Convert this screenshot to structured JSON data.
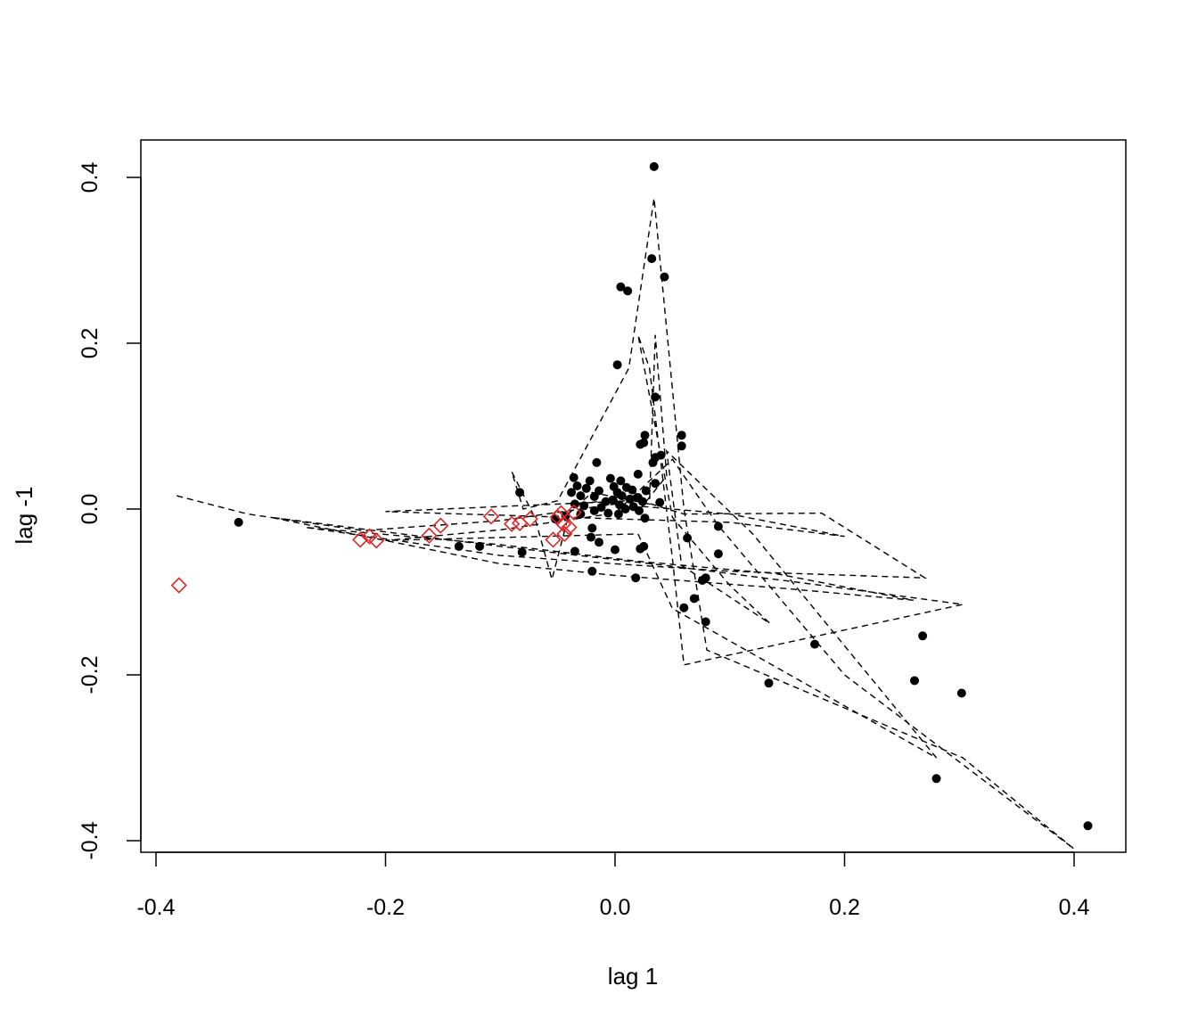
{
  "chart_data": {
    "type": "scatter",
    "title": "",
    "xlabel": "lag 1",
    "ylabel": "lag -1",
    "xlim": [
      -0.4,
      0.43
    ],
    "ylim": [
      -0.41,
      0.445
    ],
    "x_ticks": [
      -0.4,
      -0.2,
      0.0,
      0.2,
      0.4
    ],
    "x_tick_labels": [
      "-0.4",
      "-0.2",
      "0.0",
      "0.2",
      "0.4"
    ],
    "y_ticks": [
      -0.4,
      -0.2,
      0.0,
      0.2,
      0.4
    ],
    "y_tick_labels": [
      "-0.4",
      "-0.2",
      "0.0",
      "0.2",
      "0.4"
    ],
    "grid": false,
    "legend": "none",
    "colors": {
      "dots": "#000000",
      "diamonds": "#DF2727",
      "lines": "#000000"
    },
    "series": [
      {
        "marker": "filled-circle",
        "points": [
          [
            0.034,
            0.413
          ],
          [
            0.032,
            0.302
          ],
          [
            0.043,
            0.28
          ],
          [
            0.005,
            0.268
          ],
          [
            0.011,
            0.263
          ],
          [
            0.002,
            0.174
          ],
          [
            0.035,
            0.135
          ],
          [
            0.026,
            0.089
          ],
          [
            0.058,
            0.089
          ],
          [
            0.025,
            0.08
          ],
          [
            0.022,
            0.078
          ],
          [
            0.058,
            0.076
          ],
          [
            0.04,
            0.065
          ],
          [
            0.035,
            0.062
          ],
          [
            0.033,
            0.056
          ],
          [
            -0.016,
            0.056
          ],
          [
            0.02,
            0.042
          ],
          [
            -0.036,
            0.038
          ],
          [
            -0.004,
            0.037
          ],
          [
            0.005,
            0.034
          ],
          [
            -0.022,
            0.034
          ],
          [
            0.035,
            0.031
          ],
          [
            -0.033,
            0.028
          ],
          [
            -0.001,
            0.027
          ],
          [
            0.01,
            0.026
          ],
          [
            -0.025,
            0.025
          ],
          [
            0.015,
            0.023
          ],
          [
            0.027,
            0.022
          ],
          [
            0.002,
            0.02
          ],
          [
            -0.038,
            0.02
          ],
          [
            -0.014,
            0.022
          ],
          [
            -0.083,
            0.02
          ],
          [
            -0.03,
            0.016
          ],
          [
            0.006,
            0.016
          ],
          [
            -0.018,
            0.015
          ],
          [
            0.02,
            0.014
          ],
          [
            0.013,
            0.012
          ],
          [
            -0.002,
            0.011
          ],
          [
            -0.008,
            0.009
          ],
          [
            0.024,
            0.009
          ],
          [
            0.039,
            0.008
          ],
          [
            -0.035,
            0.006
          ],
          [
            0.004,
            0.005
          ],
          [
            -0.027,
            0.004
          ],
          [
            0.016,
            0.003
          ],
          [
            -0.012,
            0.002
          ],
          [
            0.009,
            0.0
          ],
          [
            0.021,
            -0.002
          ],
          [
            -0.018,
            -0.002
          ],
          [
            -0.006,
            -0.005
          ],
          [
            -0.03,
            -0.006
          ],
          [
            0.003,
            -0.006
          ],
          [
            -0.043,
            -0.008
          ],
          [
            0.026,
            -0.011
          ],
          [
            -0.052,
            -0.012
          ],
          [
            -0.328,
            -0.016
          ],
          [
            0.09,
            -0.021
          ],
          [
            -0.02,
            -0.023
          ],
          [
            -0.021,
            -0.034
          ],
          [
            0.063,
            -0.035
          ],
          [
            -0.014,
            -0.04
          ],
          [
            -0.136,
            -0.045
          ],
          [
            -0.118,
            -0.045
          ],
          [
            0.025,
            -0.045
          ],
          [
            0.022,
            -0.048
          ],
          [
            0.0,
            -0.049
          ],
          [
            -0.035,
            -0.051
          ],
          [
            -0.081,
            -0.052
          ],
          [
            0.09,
            -0.054
          ],
          [
            -0.02,
            -0.075
          ],
          [
            0.018,
            -0.083
          ],
          [
            0.079,
            -0.083
          ],
          [
            0.076,
            -0.086
          ],
          [
            0.069,
            -0.108
          ],
          [
            0.06,
            -0.119
          ],
          [
            0.079,
            -0.136
          ],
          [
            0.174,
            -0.163
          ],
          [
            0.268,
            -0.153
          ],
          [
            0.261,
            -0.207
          ],
          [
            0.134,
            -0.21
          ],
          [
            0.302,
            -0.222
          ],
          [
            0.28,
            -0.325
          ],
          [
            0.412,
            -0.382
          ]
        ]
      },
      {
        "marker": "open-diamond",
        "points": [
          [
            -0.38,
            -0.092
          ],
          [
            -0.222,
            -0.037
          ],
          [
            -0.214,
            -0.033
          ],
          [
            -0.208,
            -0.038
          ],
          [
            -0.162,
            -0.032
          ],
          [
            -0.152,
            -0.02
          ],
          [
            -0.108,
            -0.009
          ],
          [
            -0.09,
            -0.018
          ],
          [
            -0.083,
            -0.017
          ],
          [
            -0.074,
            -0.012
          ],
          [
            -0.054,
            -0.037
          ],
          [
            -0.05,
            -0.01
          ],
          [
            -0.047,
            -0.005
          ],
          [
            -0.044,
            -0.03
          ],
          [
            -0.04,
            -0.022
          ],
          [
            -0.036,
            -0.004
          ],
          [
            -0.045,
            -0.018
          ]
        ]
      },
      {
        "line": "dashed",
        "points": [
          [
            -0.382,
            0.016
          ],
          [
            -0.32,
            -0.006
          ],
          [
            -0.22,
            -0.026
          ],
          [
            -0.1,
            -0.014
          ],
          [
            0.0,
            0.006
          ],
          [
            0.1,
            -0.006
          ],
          [
            0.2,
            -0.033
          ],
          [
            0.1,
            -0.016
          ],
          [
            -0.02,
            -0.011
          ],
          [
            -0.2,
            -0.003
          ],
          [
            -0.1,
            0.003
          ],
          [
            0.0,
            0.009
          ],
          [
            0.02,
            0.011
          ],
          [
            0.06,
            -0.006
          ],
          [
            0.18,
            -0.005
          ],
          [
            0.27,
            -0.083
          ],
          [
            0.1,
            -0.075
          ],
          [
            0.0,
            -0.066
          ],
          [
            -0.1,
            -0.056
          ],
          [
            -0.27,
            -0.022
          ],
          [
            -0.1,
            -0.043
          ],
          [
            0.02,
            -0.063
          ],
          [
            0.14,
            -0.078
          ],
          [
            0.26,
            -0.11
          ],
          [
            0.15,
            -0.096
          ],
          [
            0.0,
            -0.08
          ],
          [
            -0.1,
            -0.066
          ],
          [
            -0.3,
            -0.01
          ],
          [
            -0.1,
            -0.045
          ],
          [
            0.05,
            -0.069
          ],
          [
            0.18,
            -0.092
          ],
          [
            0.303,
            -0.115
          ],
          [
            0.06,
            -0.188
          ],
          [
            0.05,
            -0.06
          ],
          [
            0.03,
            0.17
          ],
          [
            0.02,
            0.21
          ],
          [
            0.05,
            -0.01
          ],
          [
            0.1,
            -0.092
          ],
          [
            0.135,
            -0.138
          ],
          [
            0.058,
            -0.068
          ],
          [
            0.045,
            0.07
          ],
          [
            0.12,
            -0.03
          ],
          [
            0.28,
            -0.3
          ],
          [
            0.05,
            -0.12
          ],
          [
            0.02,
            -0.03
          ],
          [
            -0.2,
            -0.038
          ],
          [
            -0.1,
            -0.025
          ],
          [
            0.0,
            -0.005
          ],
          [
            0.05,
            0.06
          ],
          [
            0.09,
            -0.02
          ],
          [
            0.2,
            -0.2
          ],
          [
            0.4,
            -0.41
          ],
          [
            0.303,
            -0.3
          ],
          [
            0.08,
            -0.17
          ],
          [
            0.06,
            0.0
          ],
          [
            0.034,
            0.375
          ],
          [
            0.012,
            0.17
          ],
          [
            -0.05,
            0.01
          ],
          [
            -0.08,
            0.0
          ],
          [
            -0.09,
            0.045
          ],
          [
            -0.07,
            -0.01
          ],
          [
            -0.055,
            -0.085
          ],
          [
            -0.04,
            -0.005
          ],
          [
            -0.02,
            0.02
          ],
          [
            0.03,
            0.006
          ],
          [
            0.035,
            0.21
          ],
          [
            0.045,
            0.04
          ],
          [
            0.02,
            -0.003
          ],
          [
            0.0,
            0.012
          ],
          [
            -0.03,
            0.006
          ]
        ]
      }
    ]
  }
}
